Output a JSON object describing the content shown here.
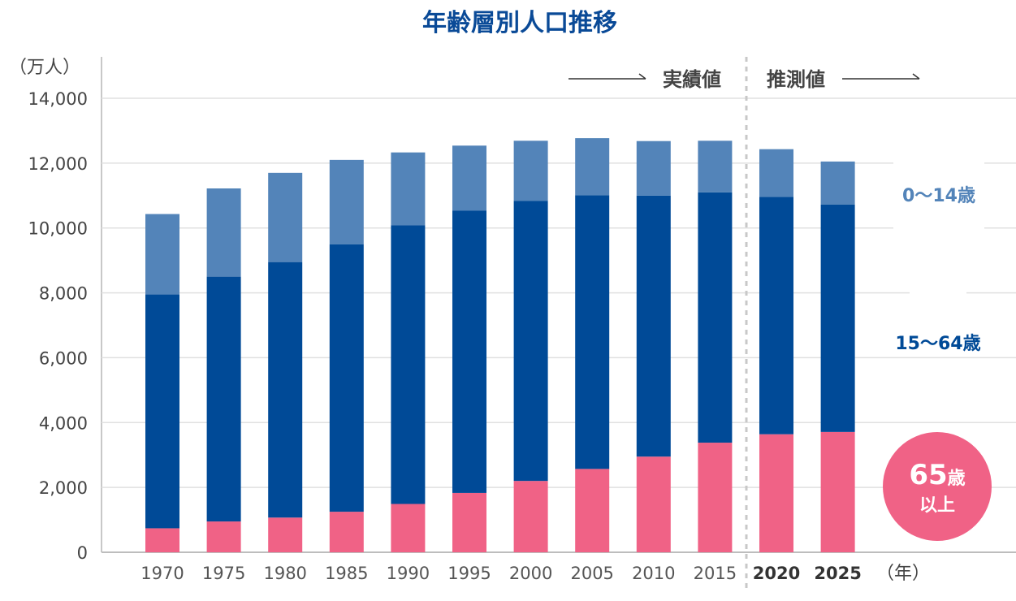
{
  "chart_data": {
    "type": "bar",
    "stacked": true,
    "title": "年齢層別人口推移",
    "ylabel": "（万人）",
    "xlabel": "（年）",
    "ylim": [
      0,
      14000
    ],
    "y_ticks": [
      0,
      2000,
      4000,
      6000,
      8000,
      10000,
      12000,
      14000
    ],
    "y_tick_labels": [
      "0",
      "2,000",
      "4,000",
      "6,000",
      "8,000",
      "10,000",
      "12,000",
      "14,000"
    ],
    "grid": true,
    "categories": [
      "1970",
      "1975",
      "1980",
      "1985",
      "1990",
      "1995",
      "2000",
      "2005",
      "2010",
      "2015",
      "2020",
      "2025"
    ],
    "projected_categories": [
      "2020",
      "2025"
    ],
    "series": [
      {
        "name": "65歳以上",
        "color": "#f06286",
        "values": [
          740,
          950,
          1070,
          1250,
          1490,
          1830,
          2200,
          2570,
          2950,
          3380,
          3640,
          3710
        ]
      },
      {
        "name": "15〜64歳",
        "color": "#004a97",
        "values": [
          7210,
          7550,
          7880,
          8250,
          8590,
          8710,
          8640,
          8440,
          8050,
          7720,
          7320,
          7010
        ]
      },
      {
        "name": "0〜14歳",
        "color": "#5384b9",
        "values": [
          2480,
          2720,
          2750,
          2600,
          2250,
          2000,
          1850,
          1760,
          1680,
          1590,
          1470,
          1330
        ]
      }
    ],
    "annotations": {
      "actual": "実績値",
      "projection": "推測値"
    }
  }
}
